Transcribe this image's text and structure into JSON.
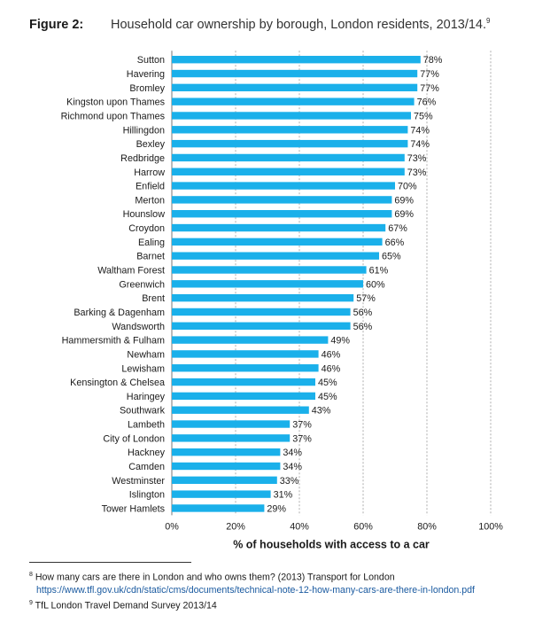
{
  "figure": {
    "label": "Figure 2:",
    "title": "Household car ownership by borough, London residents, 2013/14.",
    "title_ref": "9"
  },
  "chart_data": {
    "type": "bar",
    "orientation": "horizontal",
    "title": "Household car ownership by borough, London residents, 2013/14.",
    "categories": [
      "Sutton",
      "Havering",
      "Bromley",
      "Kingston upon Thames",
      "Richmond upon Thames",
      "Hillingdon",
      "Bexley",
      "Redbridge",
      "Harrow",
      "Enfield",
      "Merton",
      "Hounslow",
      "Croydon",
      "Ealing",
      "Barnet",
      "Waltham Forest",
      "Greenwich",
      "Brent",
      "Barking & Dagenham",
      "Wandsworth",
      "Hammersmith & Fulham",
      "Newham",
      "Lewisham",
      "Kensington & Chelsea",
      "Haringey",
      "Southwark",
      "Lambeth",
      "City of London",
      "Hackney",
      "Camden",
      "Westminster",
      "Islington",
      "Tower Hamlets"
    ],
    "values": [
      78,
      77,
      77,
      76,
      75,
      74,
      74,
      73,
      73,
      70,
      69,
      69,
      67,
      66,
      65,
      61,
      60,
      57,
      56,
      56,
      49,
      46,
      46,
      45,
      45,
      43,
      37,
      37,
      34,
      34,
      33,
      31,
      29
    ],
    "value_labels": [
      "78%",
      "77%",
      "77%",
      "76%",
      "75%",
      "74%",
      "74%",
      "73%",
      "73%",
      "70%",
      "69%",
      "69%",
      "67%",
      "66%",
      "65%",
      "61%",
      "60%",
      "57%",
      "56%",
      "56%",
      "49%",
      "46%",
      "46%",
      "45%",
      "45%",
      "43%",
      "37%",
      "37%",
      "34%",
      "34%",
      "33%",
      "31%",
      "29%"
    ],
    "xlabel": "% of households with access to a car",
    "ylabel": "",
    "xlim": [
      0,
      100
    ],
    "xticks": [
      0,
      20,
      40,
      60,
      80,
      100
    ],
    "xtick_labels": [
      "0%",
      "20%",
      "40%",
      "60%",
      "80%",
      "100%"
    ],
    "grid": true,
    "bar_color": "#1ab0ea"
  },
  "footnotes": {
    "note8_ref": "8",
    "note8_text": "How many cars are there in London and who owns them? (2013) Transport for London",
    "note8_url": "https://www.tfl.gov.uk/cdn/static/cms/documents/technical-note-12-how-many-cars-are-there-in-london.pdf",
    "note9_ref": "9",
    "note9_text": "TfL London Travel Demand Survey 2013/14"
  }
}
